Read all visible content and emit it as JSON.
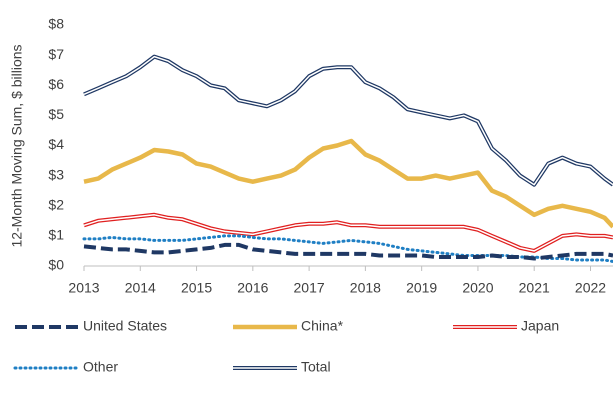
{
  "chart_data": {
    "type": "line",
    "y_label": "12-Month Moving Sum, $ billions",
    "x": [
      2013,
      2013.25,
      2013.5,
      2013.75,
      2014,
      2014.25,
      2014.5,
      2014.75,
      2015,
      2015.25,
      2015.5,
      2015.75,
      2016,
      2016.25,
      2016.5,
      2016.75,
      2017,
      2017.25,
      2017.5,
      2017.75,
      2018,
      2018.25,
      2018.5,
      2018.75,
      2019,
      2019.25,
      2019.5,
      2019.75,
      2020,
      2020.25,
      2020.5,
      2020.75,
      2021,
      2021.25,
      2021.5,
      2021.75,
      2022,
      2022.25,
      2022.4
    ],
    "series": [
      {
        "name": "United States",
        "color": "#1f3864",
        "style": "dashed",
        "values": [
          0.65,
          0.6,
          0.55,
          0.55,
          0.5,
          0.45,
          0.45,
          0.5,
          0.55,
          0.6,
          0.7,
          0.7,
          0.55,
          0.5,
          0.45,
          0.4,
          0.4,
          0.4,
          0.4,
          0.4,
          0.4,
          0.35,
          0.35,
          0.35,
          0.35,
          0.3,
          0.3,
          0.3,
          0.3,
          0.35,
          0.3,
          0.3,
          0.25,
          0.3,
          0.35,
          0.4,
          0.4,
          0.4,
          0.35
        ]
      },
      {
        "name": "China*",
        "color": "#e8b84a",
        "style": "thick",
        "values": [
          2.8,
          2.9,
          3.2,
          3.4,
          3.6,
          3.85,
          3.8,
          3.7,
          3.4,
          3.3,
          3.1,
          2.9,
          2.8,
          2.9,
          3.0,
          3.2,
          3.6,
          3.9,
          4.0,
          4.15,
          3.7,
          3.5,
          3.2,
          2.9,
          2.9,
          3.0,
          2.9,
          3.0,
          3.1,
          2.5,
          2.3,
          2.0,
          1.7,
          1.9,
          2.0,
          1.9,
          1.8,
          1.6,
          1.3
        ]
      },
      {
        "name": "Japan",
        "color": "#e02020",
        "style": "double",
        "values": [
          1.35,
          1.5,
          1.55,
          1.6,
          1.65,
          1.7,
          1.6,
          1.55,
          1.4,
          1.25,
          1.15,
          1.1,
          1.05,
          1.15,
          1.25,
          1.35,
          1.4,
          1.4,
          1.45,
          1.35,
          1.35,
          1.3,
          1.3,
          1.3,
          1.3,
          1.3,
          1.3,
          1.3,
          1.2,
          1.0,
          0.8,
          0.6,
          0.5,
          0.75,
          1.0,
          1.05,
          1.0,
          1.0,
          0.95
        ]
      },
      {
        "name": "Other",
        "color": "#1f7fc4",
        "style": "dotted",
        "values": [
          0.9,
          0.9,
          0.95,
          0.9,
          0.9,
          0.85,
          0.85,
          0.85,
          0.9,
          0.95,
          1.0,
          1.0,
          0.95,
          0.9,
          0.9,
          0.85,
          0.8,
          0.75,
          0.8,
          0.85,
          0.8,
          0.75,
          0.65,
          0.55,
          0.5,
          0.45,
          0.4,
          0.35,
          0.35,
          0.35,
          0.35,
          0.3,
          0.3,
          0.25,
          0.25,
          0.2,
          0.2,
          0.2,
          0.15
        ]
      },
      {
        "name": "Total",
        "color": "#1f3864",
        "style": "double",
        "values": [
          5.7,
          5.9,
          6.1,
          6.3,
          6.6,
          6.95,
          6.8,
          6.5,
          6.3,
          6.0,
          5.9,
          5.5,
          5.4,
          5.3,
          5.5,
          5.8,
          6.3,
          6.55,
          6.6,
          6.6,
          6.1,
          5.9,
          5.6,
          5.2,
          5.1,
          5.0,
          4.9,
          5.0,
          4.8,
          3.9,
          3.5,
          3.0,
          2.7,
          3.4,
          3.6,
          3.4,
          3.3,
          2.9,
          2.7
        ]
      }
    ],
    "xlim": [
      2013,
      2022.4
    ],
    "xticks": [
      2013,
      2014,
      2015,
      2016,
      2017,
      2018,
      2019,
      2020,
      2021,
      2022
    ],
    "ylim": [
      0,
      8
    ],
    "yticks": [
      {
        "value": 0,
        "label": "$0"
      },
      {
        "value": 1,
        "label": "$1"
      },
      {
        "value": 2,
        "label": "$2"
      },
      {
        "value": 3,
        "label": "$3"
      },
      {
        "value": 4,
        "label": "$4"
      },
      {
        "value": 5,
        "label": "$5"
      },
      {
        "value": 6,
        "label": "$6"
      },
      {
        "value": 7,
        "label": "$7"
      },
      {
        "value": 8,
        "label": "$8"
      }
    ],
    "grid": false,
    "legend": "bottom"
  }
}
